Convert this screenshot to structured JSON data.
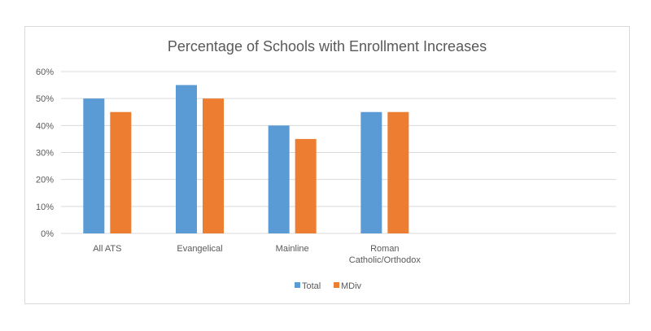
{
  "chart_data": {
    "type": "bar",
    "title": "Percentage of Schools with Enrollment Increases",
    "xlabel": "",
    "ylabel": "",
    "categories": [
      "All ATS",
      "Evangelical",
      "Mainline",
      "Roman Catholic/Orthodox",
      "",
      ""
    ],
    "series": [
      {
        "name": "Total",
        "color": "#5b9bd5",
        "values": [
          50,
          55,
          40,
          45,
          null,
          null
        ]
      },
      {
        "name": "MDiv",
        "color": "#ed7d31",
        "values": [
          45,
          50,
          35,
          45,
          null,
          null
        ]
      }
    ],
    "ylim": [
      0,
      60
    ],
    "yticks": [
      0,
      10,
      20,
      30,
      40,
      50,
      60
    ],
    "ytick_format": "percent",
    "grid": true,
    "legend_position": "bottom"
  }
}
